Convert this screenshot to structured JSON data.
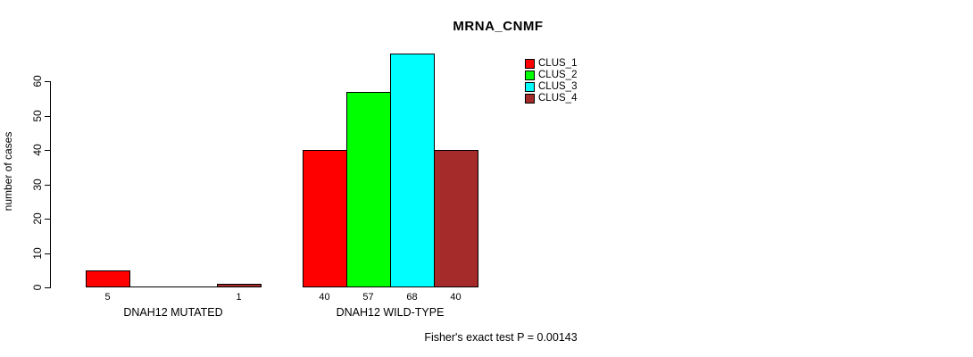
{
  "figure": {
    "background": "#ffffff",
    "text_color": "#000000"
  },
  "chart_data": {
    "type": "bar",
    "title": "MRNA_CNMF",
    "xlabel": "",
    "ylabel": "number of cases",
    "ylim": [
      0,
      60
    ],
    "yticks": [
      0,
      10,
      20,
      30,
      40,
      50,
      60
    ],
    "grid": false,
    "legend_position": "top-right-outside",
    "series": [
      "CLUS_1",
      "CLUS_2",
      "CLUS_3",
      "CLUS_4"
    ],
    "series_colors": [
      "#FF0000",
      "#00FF00",
      "#00FFFF",
      "#A52A2A"
    ],
    "bar_border_color": "#000000",
    "groups": [
      {
        "label": "DNAH12 MUTATED",
        "values": [
          5,
          0,
          0,
          1
        ],
        "bar_labels": [
          "5",
          "",
          "",
          "1"
        ]
      },
      {
        "label": "DNAH12 WILD-TYPE",
        "values": [
          40,
          57,
          68,
          40
        ],
        "bar_labels": [
          "40",
          "57",
          "68",
          "40"
        ]
      }
    ],
    "annotation": "Fisher's exact test P = 0.00143"
  }
}
